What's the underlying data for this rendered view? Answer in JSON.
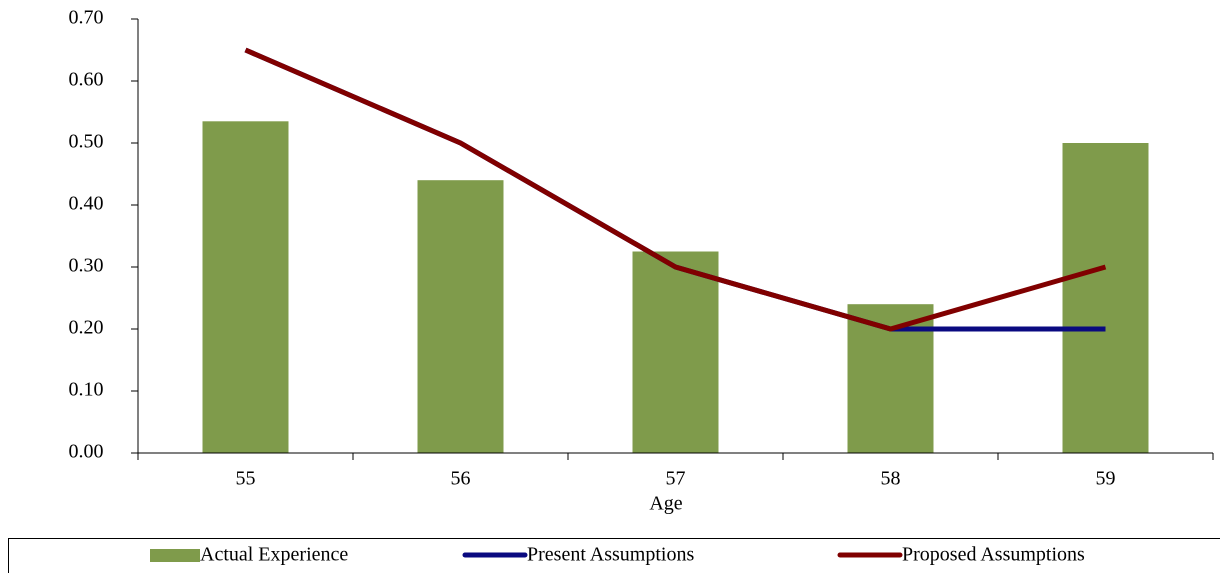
{
  "chart_data": {
    "type": "combo",
    "x_label": "Age",
    "categories": [
      "55",
      "56",
      "57",
      "58",
      "59"
    ],
    "series": [
      {
        "name": "Actual Experience",
        "type": "bar",
        "color": "#7f9b4b",
        "values": [
          0.535,
          0.44,
          0.325,
          0.24,
          0.5
        ]
      },
      {
        "name": "Present Assumptions",
        "type": "line",
        "color": "#0a0a80",
        "values": [
          0.65,
          0.5,
          0.3,
          0.2,
          0.2
        ]
      },
      {
        "name": "Proposed Assumptions",
        "type": "line",
        "color": "#800000",
        "values": [
          0.65,
          0.5,
          0.3,
          0.2,
          0.3
        ]
      }
    ],
    "ylim": [
      0,
      0.7
    ],
    "yticks": [
      {
        "value": 0,
        "label": "0.00"
      },
      {
        "value": 0.1,
        "label": "0.10"
      },
      {
        "value": 0.2,
        "label": "0.20"
      },
      {
        "value": 0.3,
        "label": "0.30"
      },
      {
        "value": 0.4,
        "label": "0.40"
      },
      {
        "value": 0.5,
        "label": "0.50"
      },
      {
        "value": 0.6,
        "label": "0.60"
      },
      {
        "value": 0.7,
        "label": "0.70"
      }
    ],
    "legend": "bottom"
  }
}
